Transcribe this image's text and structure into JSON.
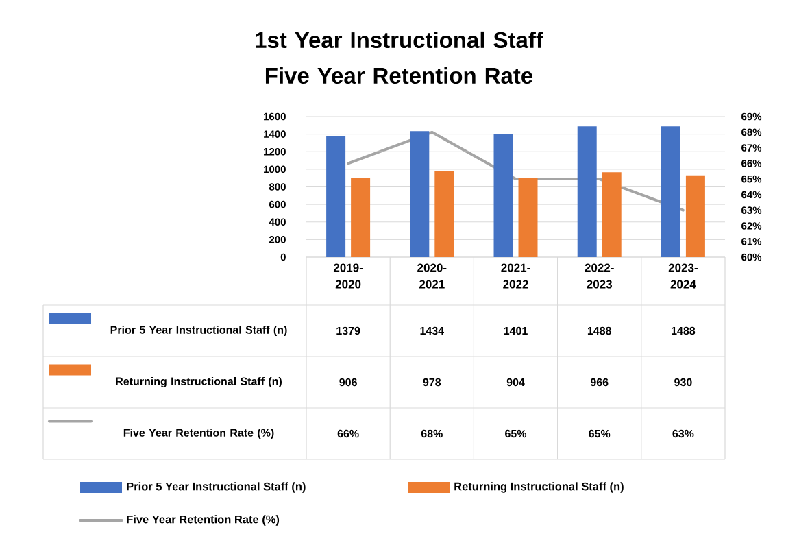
{
  "chart_data": {
    "type": "bar",
    "title": "1st Year Instructional Staff Five Year Retention Rate",
    "categories": [
      "2019-2020",
      "2020-2021",
      "2021-2022",
      "2022-2023",
      "2023-2024"
    ],
    "series": [
      {
        "name": "Prior 5 Year Instructional Staff (n)",
        "color": "#4472c4",
        "values": [
          1379,
          1434,
          1401,
          1488,
          1488
        ],
        "value_labels": [
          "1379",
          "1434",
          "1401",
          "1488",
          "1488"
        ]
      },
      {
        "name": "Returning Instructional Staff (n)",
        "color": "#ed7d31",
        "values": [
          906,
          978,
          904,
          966,
          930
        ],
        "value_labels": [
          "906",
          "978",
          "904",
          "966",
          "930"
        ]
      },
      {
        "name": "Five Year Retention Rate (%)",
        "type": "line",
        "axis": "y2",
        "color": "#a5a5a5",
        "values": [
          66,
          68,
          65,
          65,
          63
        ],
        "value_labels": [
          "66%",
          "68%",
          "65%",
          "65%",
          "63%"
        ]
      }
    ],
    "ylim": [
      0,
      1600
    ],
    "yticks": [
      0,
      200,
      400,
      600,
      800,
      1000,
      1200,
      1400,
      1600
    ],
    "y2lim": [
      60,
      69
    ],
    "y2ticks": [
      {
        "value": 60,
        "label": "60%"
      },
      {
        "value": 61,
        "label": "61%"
      },
      {
        "value": 62,
        "label": "62%"
      },
      {
        "value": 63,
        "label": "63%"
      },
      {
        "value": 64,
        "label": "64%"
      },
      {
        "value": 65,
        "label": "65%"
      },
      {
        "value": 66,
        "label": "66%"
      },
      {
        "value": 67,
        "label": "67%"
      },
      {
        "value": 68,
        "label": "68%"
      },
      {
        "value": 69,
        "label": "69%"
      }
    ],
    "grid": "y",
    "legend": "bottom"
  }
}
